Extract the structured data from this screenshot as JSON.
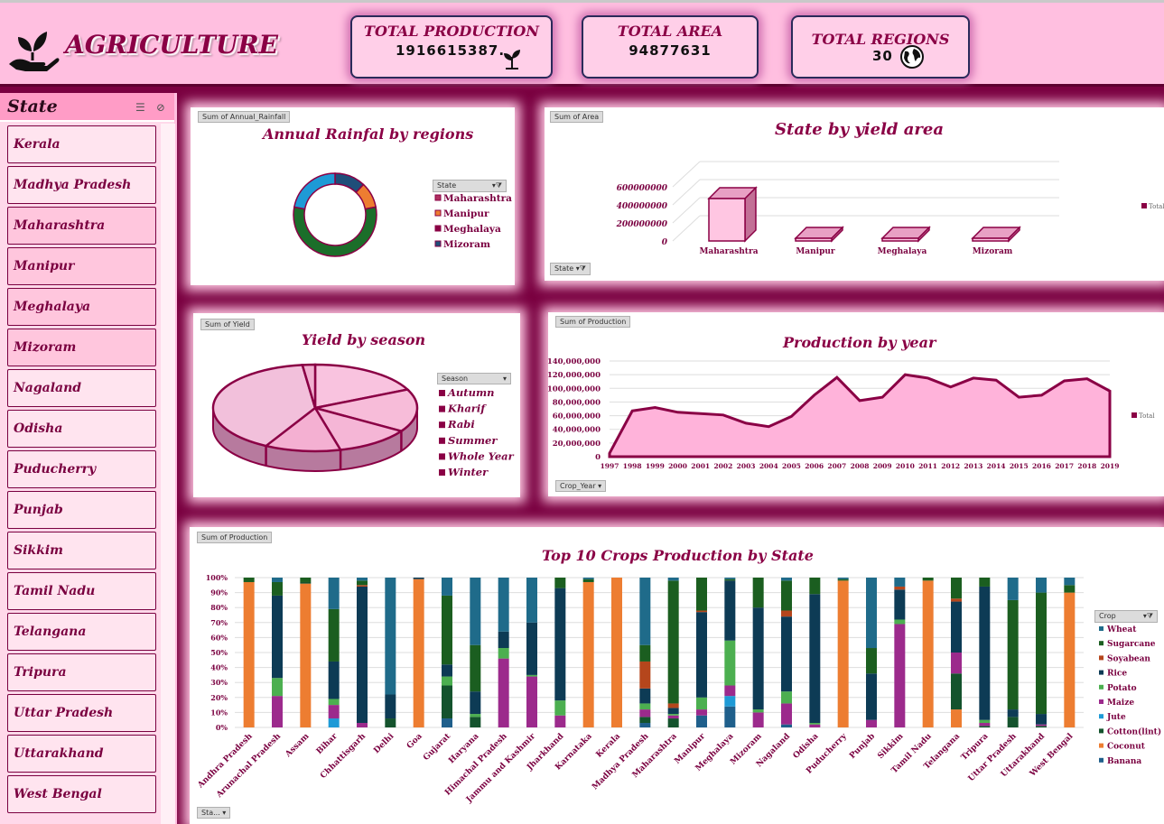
{
  "header": {
    "title": "AGRICULTURE",
    "kpis": [
      {
        "label": "TOTAL PRODUCTION",
        "value": "1916615387.",
        "icon": "plant-icon"
      },
      {
        "label": "TOTAL AREA",
        "value": "94877631"
      },
      {
        "label": "TOTAL REGIONS",
        "value": "30",
        "icon": "globe-icon"
      }
    ]
  },
  "slicer": {
    "title": "State",
    "items": [
      {
        "label": "Kerala",
        "selected": false
      },
      {
        "label": "Madhya Pradesh",
        "selected": false
      },
      {
        "label": "Maharashtra",
        "selected": true
      },
      {
        "label": "Manipur",
        "selected": true
      },
      {
        "label": "Meghalaya",
        "selected": true
      },
      {
        "label": "Mizoram",
        "selected": true
      },
      {
        "label": "Nagaland",
        "selected": false
      },
      {
        "label": "Odisha",
        "selected": false
      },
      {
        "label": "Puducherry",
        "selected": false
      },
      {
        "label": "Punjab",
        "selected": false
      },
      {
        "label": "Sikkim",
        "selected": false
      },
      {
        "label": "Tamil Nadu",
        "selected": false
      },
      {
        "label": "Telangana",
        "selected": false
      },
      {
        "label": "Tripura",
        "selected": false
      },
      {
        "label": "Uttar Pradesh",
        "selected": false
      },
      {
        "label": "Uttarakhand",
        "selected": false
      },
      {
        "label": "West Bengal",
        "selected": false
      }
    ]
  },
  "colors": {
    "maroon": "#8a0045",
    "pink_bg": "#ffbfe0",
    "wheat": "#1f6b8a",
    "sugarcane": "#1b5e20",
    "soyabean": "#b5461c",
    "rice": "#0d3b55",
    "potato": "#4caf50",
    "maize": "#9c2a8c",
    "jute": "#1e9ad6",
    "cotton": "#14532d",
    "coconut": "#ed7d31",
    "banana": "#1f5f8b"
  },
  "panels": {
    "rainfall": {
      "tag": "Sum of Annual_Rainfall",
      "filter": "State"
    },
    "yield_area": {
      "tag": "Sum of Area",
      "filter": "State",
      "legend": "Total"
    },
    "season": {
      "tag": "Sum of Yield",
      "filter": "Season"
    },
    "production_year": {
      "tag": "Sum of Production",
      "filter": "Crop_Year",
      "legend": "Total"
    },
    "top10": {
      "tag": "Sum of Production",
      "filter": "Crop",
      "bottom_filter": "Sta..."
    }
  },
  "chart_data": [
    {
      "type": "pie",
      "title": "Annual Rainfal by regions",
      "variant": "doughnut",
      "labels": [
        "Maharashtra",
        "Manipur",
        "Meghalaya",
        "Mizoram"
      ],
      "values": [
        12,
        10,
        56,
        22
      ],
      "colors": [
        "#1f4e79",
        "#ed7d31",
        "#1b6e2a",
        "#1e9ad6"
      ],
      "legend_colors": [
        "#b03060",
        "#ed7d31",
        "#8a0045",
        "#1f4e79"
      ]
    },
    {
      "type": "bar",
      "title": "State by yield area",
      "categories": [
        "Maharashtra",
        "Manipur",
        "Meghalaya",
        "Mizoram"
      ],
      "values": [
        470000000,
        2000000,
        2000000,
        1500000
      ],
      "yticks": [
        "600000000",
        "400000000",
        "200000000",
        "0"
      ],
      "ylim": [
        0,
        600000000
      ]
    },
    {
      "type": "pie",
      "title": "Yield by season",
      "labels": [
        "Autumn",
        "Kharif",
        "Rabi",
        "Summer",
        "Whole Year",
        "Winter"
      ],
      "values": [
        18,
        16,
        12,
        12,
        40,
        2
      ]
    },
    {
      "type": "area",
      "title": "Production by year",
      "x": [
        "1997",
        "1998",
        "1999",
        "2000",
        "2001",
        "2002",
        "2003",
        "2004",
        "2005",
        "2006",
        "2007",
        "2008",
        "2009",
        "2010",
        "2011",
        "2012",
        "2013",
        "2014",
        "2015",
        "2016",
        "2017",
        "2018",
        "2019"
      ],
      "values": [
        5000000,
        67000000,
        72000000,
        65000000,
        63000000,
        61000000,
        49000000,
        44000000,
        59000000,
        90000000,
        116000000,
        82000000,
        87000000,
        120000000,
        115000000,
        102000000,
        115000000,
        112000000,
        87000000,
        90000000,
        111000000,
        114000000,
        96000000
      ],
      "yticks": [
        "140,000,000",
        "120,000,000",
        "100,000,000",
        "80,000,000",
        "60,000,000",
        "40,000,000",
        "20,000,000",
        "0"
      ],
      "ylim": [
        0,
        140000000
      ]
    },
    {
      "type": "bar",
      "variant": "stacked-100",
      "title": "Top 10 Crops Production by State",
      "yticks": [
        "100%",
        "90%",
        "80%",
        "70%",
        "60%",
        "50%",
        "40%",
        "30%",
        "20%",
        "10%",
        "0%"
      ],
      "legend_title": "Crop",
      "series_names": [
        "Wheat",
        "Sugarcane",
        "Soyabean",
        "Rice",
        "Potato",
        "Maize",
        "Jute",
        "Cotton(lint)",
        "Coconut",
        "Banana"
      ],
      "categories": [
        "Andhra Pradesh",
        "Arunachal Pradesh",
        "Assam",
        "Bihar",
        "Chhattisgarh",
        "Delhi",
        "Goa",
        "Gujarat",
        "Haryana",
        "Himachal Pradesh",
        "Jammu and Kashmir",
        "Jharkhand",
        "Karnataka",
        "Kerala",
        "Madhya Pradesh",
        "Maharashtra",
        "Manipur",
        "Meghalaya",
        "Mizoram",
        "Nagaland",
        "Odisha",
        "Puducherry",
        "Punjab",
        "Sikkim",
        "Tamil Nadu",
        "Telangana",
        "Tripura",
        "Uttar Pradesh",
        "Uttarakhand",
        "West Bengal"
      ],
      "stack_order": [
        "Banana",
        "Coconut",
        "Cotton(lint)",
        "Jute",
        "Maize",
        "Potato",
        "Rice",
        "Soyabean",
        "Sugarcane",
        "Wheat"
      ],
      "stacks": [
        [
          0,
          97,
          0,
          0,
          0,
          0,
          0,
          0,
          3,
          0
        ],
        [
          0,
          0,
          0,
          0,
          21,
          12,
          55,
          0,
          9,
          3
        ],
        [
          0,
          96,
          1,
          0,
          0,
          0,
          0,
          0,
          3,
          0
        ],
        [
          0,
          0,
          0,
          6,
          9,
          4,
          25,
          0,
          35,
          21
        ],
        [
          0,
          0,
          0,
          0,
          3,
          0,
          91,
          1,
          3,
          2
        ],
        [
          0,
          0,
          6,
          0,
          0,
          0,
          16,
          0,
          0,
          78
        ],
        [
          0,
          99,
          0,
          0,
          0,
          0,
          1,
          0,
          0,
          0
        ],
        [
          6,
          0,
          22,
          0,
          0,
          6,
          8,
          0,
          46,
          12
        ],
        [
          0,
          0,
          7,
          0,
          0,
          2,
          15,
          0,
          31,
          45
        ],
        [
          0,
          0,
          0,
          0,
          46,
          7,
          11,
          0,
          0,
          36
        ],
        [
          0,
          0,
          0,
          0,
          34,
          1,
          35,
          0,
          0,
          30
        ],
        [
          0,
          0,
          0,
          0,
          8,
          10,
          75,
          0,
          7,
          0
        ],
        [
          0,
          97,
          0,
          0,
          0,
          0,
          0,
          0,
          2,
          1
        ],
        [
          0,
          100,
          0,
          0,
          0,
          0,
          0,
          0,
          0,
          0
        ],
        [
          3,
          0,
          4,
          0,
          5,
          4,
          10,
          18,
          11,
          45
        ],
        [
          0,
          0,
          6,
          0,
          2,
          1,
          4,
          3,
          82,
          2
        ],
        [
          8,
          0,
          0,
          0,
          4,
          8,
          57,
          1,
          22,
          0
        ],
        [
          14,
          0,
          0,
          7,
          7,
          30,
          40,
          0,
          1,
          1
        ],
        [
          0,
          0,
          0,
          0,
          10,
          2,
          68,
          0,
          20,
          0
        ],
        [
          2,
          0,
          0,
          0,
          14,
          8,
          50,
          4,
          20,
          2
        ],
        [
          0,
          0,
          0,
          0,
          2,
          1,
          86,
          0,
          11,
          0
        ],
        [
          0,
          98,
          0,
          0,
          0,
          0,
          0,
          0,
          1,
          1
        ],
        [
          0,
          0,
          0,
          0,
          5,
          0,
          31,
          0,
          17,
          47
        ],
        [
          0,
          0,
          0,
          0,
          69,
          3,
          20,
          2,
          0,
          6
        ],
        [
          0,
          98,
          0,
          0,
          0,
          0,
          0,
          0,
          2,
          0
        ],
        [
          0,
          12,
          24,
          0,
          14,
          0,
          34,
          2,
          14,
          0
        ],
        [
          0,
          0,
          1,
          0,
          2,
          2,
          89,
          0,
          6,
          0
        ],
        [
          0,
          0,
          7,
          0,
          0,
          0,
          5,
          0,
          73,
          15
        ],
        [
          0,
          0,
          1,
          0,
          1,
          0,
          7,
          0,
          81,
          10
        ],
        [
          0,
          90,
          0,
          0,
          0,
          0,
          0,
          0,
          5,
          5
        ]
      ]
    }
  ]
}
